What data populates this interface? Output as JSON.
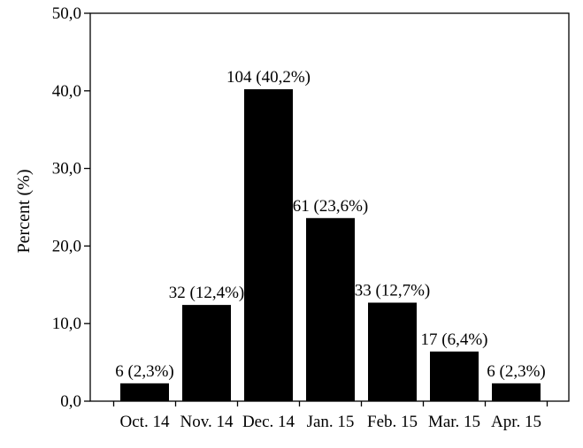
{
  "chart_data": {
    "type": "bar",
    "categories": [
      "Oct. 14",
      "Nov. 14",
      "Dec. 14",
      "Jan. 15",
      "Feb. 15",
      "Mar. 15",
      "Apr. 15"
    ],
    "values": [
      2.3,
      12.4,
      40.2,
      23.6,
      12.7,
      6.4,
      2.3
    ],
    "data_labels": [
      "6 (2,3%)",
      "32 (12,4%)",
      "104 (40,2%)",
      "61 (23,6%)",
      "33 (12,7%)",
      "17 (6,4%)",
      "6 (2,3%)"
    ],
    "ylabel": "Percent (%)",
    "xlabel": "",
    "title": "",
    "ylim": [
      0,
      50
    ],
    "yticks": [
      0,
      10,
      20,
      30,
      40,
      50
    ],
    "ytick_labels": [
      "0,0",
      "10,0",
      "20,0",
      "30,0",
      "40,0",
      "50,0"
    ],
    "grid": false,
    "bar_color": "#000000"
  }
}
